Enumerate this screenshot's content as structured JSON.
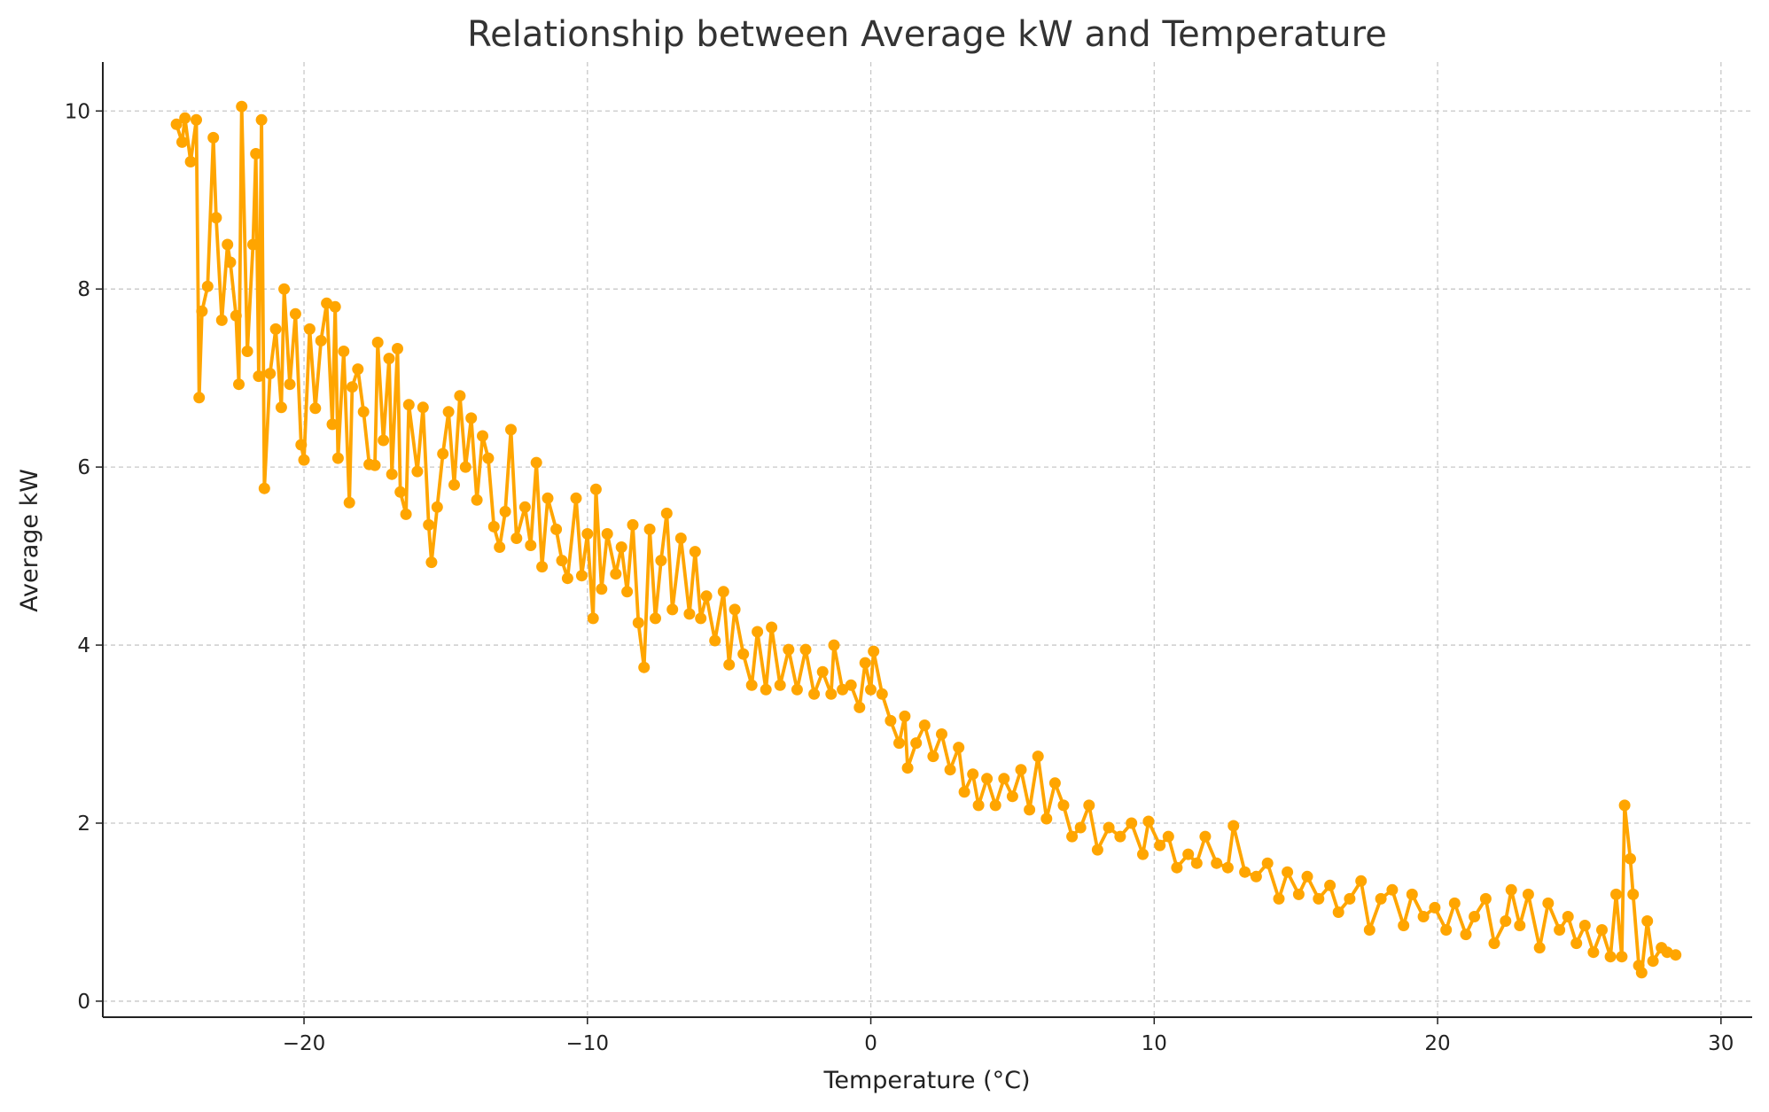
{
  "chart_data": {
    "type": "line",
    "title": "Relationship between Average kW and Temperature",
    "xlabel": "Temperature (°C)",
    "ylabel": "Average kW",
    "xlim": [
      -27.1,
      31.1
    ],
    "ylim": [
      -0.18,
      10.55
    ],
    "xticks": [
      -20,
      -10,
      0,
      10,
      20,
      30
    ],
    "xtick_labels": [
      "−20",
      "−10",
      "0",
      "10",
      "20",
      "30"
    ],
    "yticks": [
      0,
      2,
      4,
      6,
      8,
      10
    ],
    "ytick_labels": [
      "0",
      "2",
      "4",
      "6",
      "8",
      "10"
    ],
    "grid": true,
    "color": "#FFA500",
    "markers": "circle",
    "series": [
      {
        "x": [
          -24.5,
          -24.3,
          -24.2,
          -24.0,
          -23.8,
          -23.7,
          -23.6,
          -23.4,
          -23.2,
          -23.1,
          -22.9,
          -22.7,
          -22.6,
          -22.4,
          -22.3,
          -22.2,
          -22.0,
          -21.8,
          -21.7,
          -21.6,
          -21.5,
          -21.4,
          -21.2,
          -21.0,
          -20.8,
          -20.7,
          -20.5,
          -20.3,
          -20.1,
          -20.0,
          -19.8,
          -19.6,
          -19.4,
          -19.2,
          -19.0,
          -18.9,
          -18.8,
          -18.6,
          -18.4,
          -18.3,
          -18.1,
          -17.9,
          -17.7,
          -17.5,
          -17.4,
          -17.2,
          -17.0,
          -16.9,
          -16.7,
          -16.6,
          -16.4,
          -16.3,
          -16.0,
          -15.8,
          -15.6,
          -15.5,
          -15.3,
          -15.1,
          -14.9,
          -14.7,
          -14.5,
          -14.3,
          -14.1,
          -13.9,
          -13.7,
          -13.5,
          -13.3,
          -13.1,
          -12.9,
          -12.7,
          -12.5,
          -12.2,
          -12.0,
          -11.8,
          -11.6,
          -11.4,
          -11.1,
          -10.9,
          -10.7,
          -10.4,
          -10.2,
          -10.0,
          -9.8,
          -9.7,
          -9.5,
          -9.3,
          -9.0,
          -8.8,
          -8.6,
          -8.4,
          -8.2,
          -8.0,
          -7.8,
          -7.6,
          -7.4,
          -7.2,
          -7.0,
          -6.7,
          -6.4,
          -6.2,
          -6.0,
          -5.8,
          -5.5,
          -5.2,
          -5.0,
          -4.8,
          -4.5,
          -4.2,
          -4.0,
          -3.7,
          -3.5,
          -3.2,
          -2.9,
          -2.6,
          -2.3,
          -2.0,
          -1.7,
          -1.4,
          -1.3,
          -1.0,
          -0.7,
          -0.4,
          -0.2,
          0.0,
          0.1,
          0.4,
          0.7,
          1.0,
          1.2,
          1.3,
          1.6,
          1.9,
          2.2,
          2.5,
          2.8,
          3.1,
          3.3,
          3.6,
          3.8,
          4.1,
          4.4,
          4.7,
          5.0,
          5.3,
          5.6,
          5.9,
          6.2,
          6.5,
          6.8,
          7.1,
          7.4,
          7.7,
          8.0,
          8.4,
          8.8,
          9.2,
          9.6,
          9.8,
          10.2,
          10.5,
          10.8,
          11.2,
          11.5,
          11.8,
          12.2,
          12.6,
          12.8,
          13.2,
          13.6,
          14.0,
          14.4,
          14.7,
          15.1,
          15.4,
          15.8,
          16.2,
          16.5,
          16.9,
          17.3,
          17.6,
          18.0,
          18.4,
          18.8,
          19.1,
          19.5,
          19.9,
          20.3,
          20.6,
          21.0,
          21.3,
          21.7,
          22.0,
          22.4,
          22.6,
          22.9,
          23.2,
          23.6,
          23.9,
          24.3,
          24.6,
          24.9,
          25.2,
          25.5,
          25.8,
          26.1,
          26.3,
          26.5,
          26.6,
          26.8,
          26.9,
          27.1,
          27.2,
          27.4,
          27.6,
          27.9,
          28.1,
          28.4
        ],
        "y": [
          9.85,
          9.65,
          9.92,
          9.43,
          9.9,
          6.78,
          7.75,
          8.03,
          9.7,
          8.8,
          7.65,
          8.5,
          8.3,
          7.7,
          6.93,
          10.05,
          7.3,
          8.5,
          9.52,
          7.02,
          9.9,
          5.76,
          7.05,
          7.55,
          6.67,
          8.0,
          6.93,
          7.72,
          6.25,
          6.08,
          7.55,
          6.66,
          7.42,
          7.84,
          6.48,
          7.8,
          6.1,
          7.3,
          5.6,
          6.9,
          7.1,
          6.62,
          6.03,
          6.02,
          7.4,
          6.3,
          7.22,
          5.92,
          7.33,
          5.72,
          5.47,
          6.7,
          5.95,
          6.67,
          5.35,
          4.93,
          5.55,
          6.15,
          6.62,
          5.8,
          6.8,
          6.0,
          6.55,
          5.63,
          6.35,
          6.1,
          5.33,
          5.1,
          5.5,
          6.42,
          5.2,
          5.55,
          5.12,
          6.05,
          4.88,
          5.65,
          5.3,
          4.95,
          4.75,
          5.65,
          4.78,
          5.25,
          4.3,
          5.75,
          4.63,
          5.25,
          4.8,
          5.1,
          4.6,
          5.35,
          4.25,
          3.75,
          5.3,
          4.3,
          4.95,
          5.48,
          4.4,
          5.2,
          4.35,
          5.05,
          4.3,
          4.55,
          4.05,
          4.6,
          3.78,
          4.4,
          3.9,
          3.55,
          4.15,
          3.5,
          4.2,
          3.55,
          3.95,
          3.5,
          3.95,
          3.45,
          3.7,
          3.45,
          4.0,
          3.5,
          3.55,
          3.3,
          3.8,
          3.5,
          3.93,
          3.45,
          3.15,
          2.9,
          3.2,
          2.62,
          2.9,
          3.1,
          2.75,
          3.0,
          2.6,
          2.85,
          2.35,
          2.55,
          2.2,
          2.5,
          2.2,
          2.5,
          2.3,
          2.6,
          2.15,
          2.75,
          2.05,
          2.45,
          2.2,
          1.85,
          1.95,
          2.2,
          1.7,
          1.95,
          1.85,
          2.0,
          1.65,
          2.02,
          1.75,
          1.85,
          1.5,
          1.65,
          1.55,
          1.85,
          1.55,
          1.5,
          1.97,
          1.45,
          1.4,
          1.55,
          1.15,
          1.45,
          1.2,
          1.4,
          1.15,
          1.3,
          1.0,
          1.15,
          1.35,
          0.8,
          1.15,
          1.25,
          0.85,
          1.2,
          0.95,
          1.05,
          0.8,
          1.1,
          0.75,
          0.95,
          1.15,
          0.65,
          0.9,
          1.25,
          0.85,
          1.2,
          0.6,
          1.1,
          0.8,
          0.95,
          0.65,
          0.85,
          0.55,
          0.8,
          0.5,
          1.2,
          0.5,
          2.2,
          1.6,
          1.2,
          0.4,
          0.32,
          0.9,
          0.45,
          0.6,
          0.55,
          0.52
        ]
      }
    ]
  }
}
